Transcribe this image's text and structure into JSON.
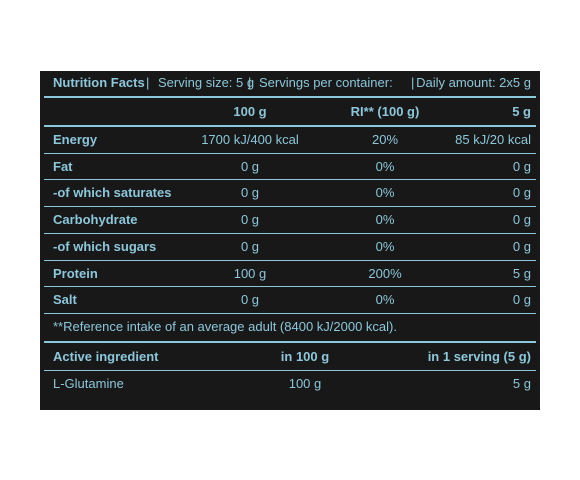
{
  "header": {
    "title": "Nutrition Facts",
    "sep1": "|",
    "serving_size": "Serving size: 5 g",
    "sep2": "|",
    "servings": "Servings per container:",
    "sep3": "|",
    "daily": "Daily amount: 2x5 g"
  },
  "columns": {
    "c1": "100 g",
    "c2": "RI** (100 g)",
    "c3": "5 g"
  },
  "rows": [
    {
      "name": "Energy",
      "v100": "1700 kJ/400 kcal",
      "ri": "20%",
      "serving": "85 kJ/20 kcal"
    },
    {
      "name": "Fat",
      "v100": "0 g",
      "ri": "0%",
      "serving": "0 g"
    },
    {
      "name": "-of which saturates",
      "v100": "0 g",
      "ri": "0%",
      "serving": "0 g"
    },
    {
      "name": "Carbohydrate",
      "v100": "0 g",
      "ri": "0%",
      "serving": "0 g"
    },
    {
      "name": "-of which sugars",
      "v100": "0 g",
      "ri": "0%",
      "serving": "0 g"
    },
    {
      "name": "Protein",
      "v100": "100 g",
      "ri": "200%",
      "serving": "5 g"
    },
    {
      "name": "Salt",
      "v100": "0 g",
      "ri": "0%",
      "serving": "0 g"
    }
  ],
  "footnote": "**Reference intake of an average adult (8400 kJ/2000 kcal).",
  "active": {
    "headers": {
      "name": "Active ingredient",
      "per100": "in 100 g",
      "serving": "in 1 serving (5 g)"
    },
    "rows": [
      {
        "name": "L-Glutamine",
        "per100": "100 g",
        "serving": "5 g"
      }
    ]
  },
  "colors": {
    "background": "#181818",
    "text": "#8cc7db"
  }
}
